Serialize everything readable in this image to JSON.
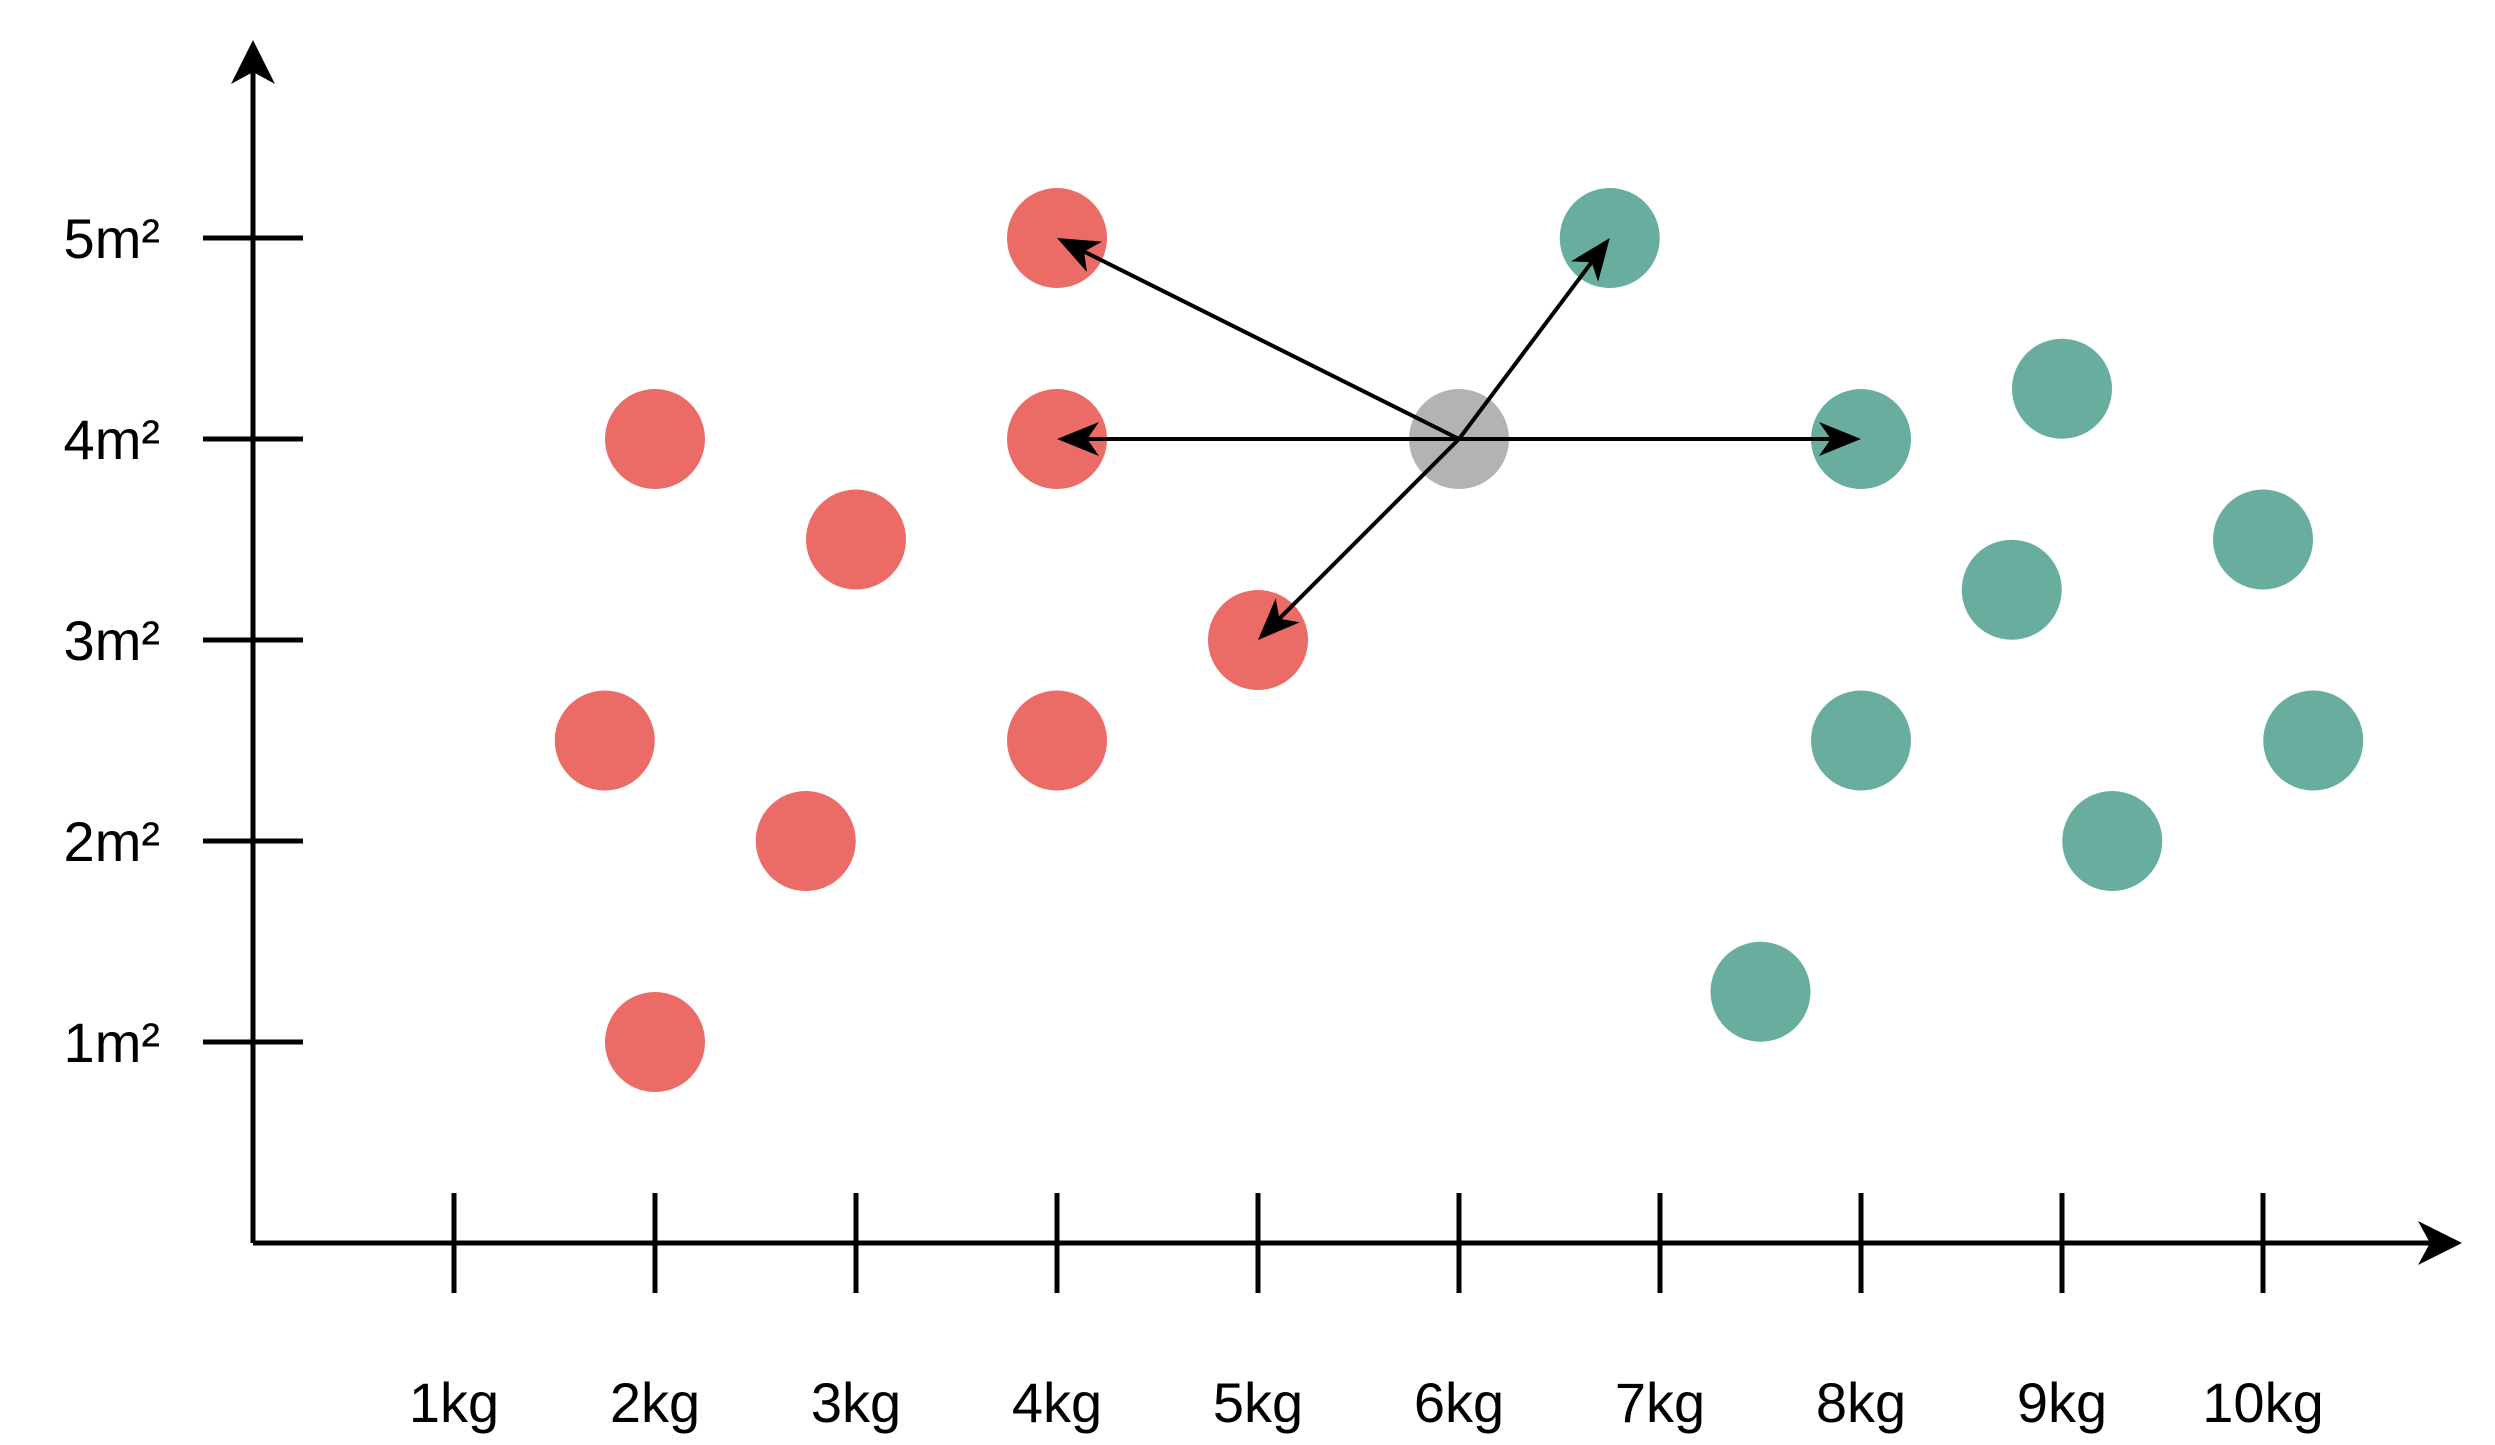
{
  "chart_data": {
    "type": "scatter",
    "title": "",
    "xlabel": "",
    "ylabel": "",
    "x_ticks": [
      {
        "value": 1,
        "label": "1kg"
      },
      {
        "value": 2,
        "label": "2kg"
      },
      {
        "value": 3,
        "label": "3kg"
      },
      {
        "value": 4,
        "label": "4kg"
      },
      {
        "value": 5,
        "label": "5kg"
      },
      {
        "value": 6,
        "label": "6kg"
      },
      {
        "value": 7,
        "label": "7kg"
      },
      {
        "value": 8,
        "label": "8kg"
      },
      {
        "value": 9,
        "label": "9kg"
      },
      {
        "value": 10,
        "label": "10kg"
      }
    ],
    "y_ticks": [
      {
        "value": 1,
        "label": "1m²"
      },
      {
        "value": 2,
        "label": "2m²"
      },
      {
        "value": 3,
        "label": "3m²"
      },
      {
        "value": 4,
        "label": "4m²"
      },
      {
        "value": 5,
        "label": "5m²"
      }
    ],
    "xlim": [
      0,
      11
    ],
    "ylim": [
      0,
      5.9
    ],
    "grid": false,
    "series": [
      {
        "color": "#eb6b66",
        "points": [
          {
            "x": 4,
            "y": 5
          },
          {
            "x": 2,
            "y": 4
          },
          {
            "x": 4,
            "y": 4
          },
          {
            "x": 3,
            "y": 3.5
          },
          {
            "x": 5,
            "y": 3
          },
          {
            "x": 1.75,
            "y": 2.5
          },
          {
            "x": 4,
            "y": 2.5
          },
          {
            "x": 2.75,
            "y": 2
          },
          {
            "x": 2,
            "y": 1
          }
        ]
      },
      {
        "color": "#68ad9e",
        "points": [
          {
            "x": 6.75,
            "y": 5
          },
          {
            "x": 9,
            "y": 4.25
          },
          {
            "x": 8,
            "y": 4
          },
          {
            "x": 10,
            "y": 3.5
          },
          {
            "x": 8.75,
            "y": 3.25
          },
          {
            "x": 8,
            "y": 2.5
          },
          {
            "x": 10.25,
            "y": 2.5
          },
          {
            "x": 9.25,
            "y": 2
          },
          {
            "x": 7.5,
            "y": 1.25
          }
        ]
      },
      {
        "color": "#b3b3b3",
        "points": [
          {
            "x": 6,
            "y": 4
          }
        ]
      }
    ],
    "arrows": [
      {
        "from": {
          "x": 6,
          "y": 4
        },
        "to": {
          "x": 4,
          "y": 5
        }
      },
      {
        "from": {
          "x": 6,
          "y": 4
        },
        "to": {
          "x": 4,
          "y": 4
        }
      },
      {
        "from": {
          "x": 6,
          "y": 4
        },
        "to": {
          "x": 5,
          "y": 3
        }
      },
      {
        "from": {
          "x": 6,
          "y": 4
        },
        "to": {
          "x": 6.75,
          "y": 5
        }
      },
      {
        "from": {
          "x": 6,
          "y": 4
        },
        "to": {
          "x": 8,
          "y": 4
        }
      }
    ]
  }
}
